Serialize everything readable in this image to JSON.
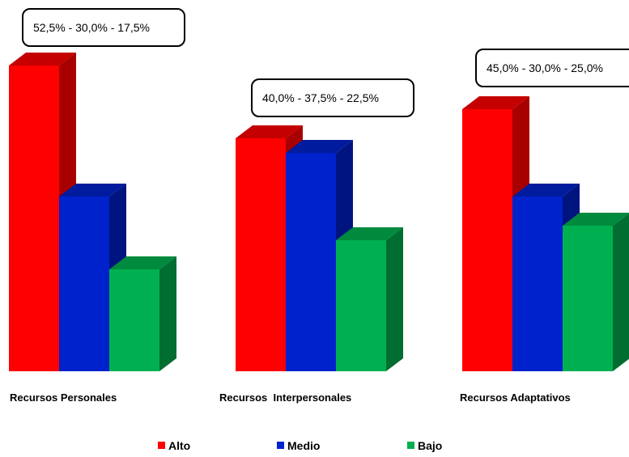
{
  "chart_data": {
    "type": "bar",
    "categories": [
      "Recursos Personales",
      "Recursos  Interpersonales",
      "Recursos Adaptativos"
    ],
    "series": [
      {
        "name": "Alto",
        "values": [
          52.5,
          40.0,
          45.0
        ]
      },
      {
        "name": "Medio",
        "values": [
          30.0,
          37.5,
          30.0
        ]
      },
      {
        "name": "Bajo",
        "values": [
          17.5,
          22.5,
          25.0
        ]
      }
    ],
    "annotations": [
      "52,5% - 30,0% - 17,5%",
      "40,0% - 37,5% - 22,5%",
      "45,0% - 30,0% - 25,0%"
    ],
    "ylim": [
      0,
      52.5
    ],
    "grid": false,
    "legend_position": "bottom",
    "style": "3d-column"
  },
  "colors": {
    "Alto": {
      "front": "#ff0000",
      "side": "#a80000",
      "top": "#c40000"
    },
    "Medio": {
      "front": "#0022cc",
      "side": "#001480",
      "top": "#001b9e"
    },
    "Bajo": {
      "front": "#00b050",
      "side": "#006e30",
      "top": "#008a3e"
    }
  }
}
